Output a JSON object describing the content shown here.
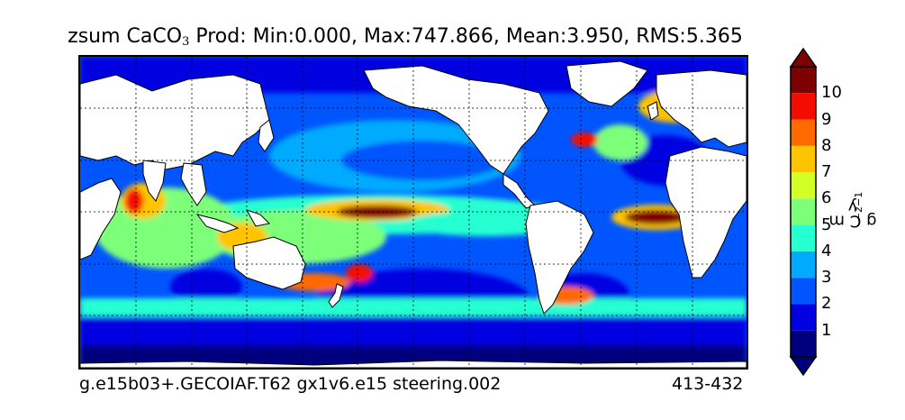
{
  "title": {
    "variable": "zsum CaCO",
    "subscript": "3",
    "stats": " Prod: Min:0.000, Max:747.866, Mean:3.950, RMS:5.365"
  },
  "footer": {
    "case": "g.e15b03+.GECOIAF.T62 gx1v6.e15 steering.002",
    "years": "413-432"
  },
  "colorbar": {
    "units_main": "g C m",
    "units_exp1": "−2",
    "units_mid": " y",
    "units_exp2": "−1",
    "levels": [
      "1",
      "2",
      "3",
      "4",
      "5",
      "6",
      "7",
      "8",
      "9",
      "10"
    ],
    "colors": [
      "#00007f",
      "#0000e0",
      "#0055ff",
      "#00aaff",
      "#26ffd1",
      "#7dff7a",
      "#d1ff26",
      "#ffc400",
      "#ff6a00",
      "#f50b00",
      "#7f0000"
    ],
    "extend": "both"
  },
  "map": {
    "projection": "cylindrical",
    "land_color": "#ffffff",
    "gridlines": "dashed"
  }
}
